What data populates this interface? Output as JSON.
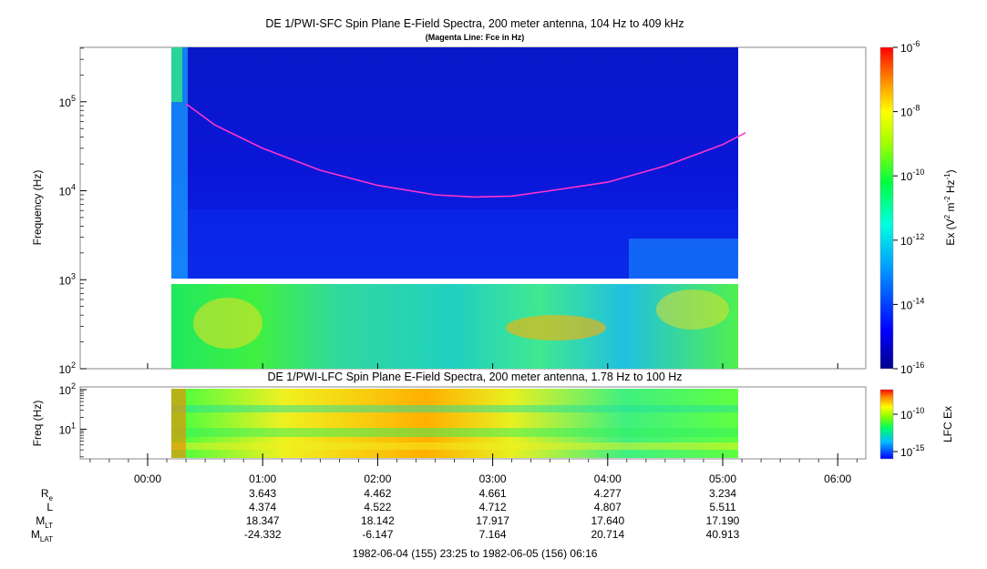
{
  "panel_top": {
    "title": "DE 1/PWI-SFC  Spin Plane E-Field Spectra, 200 meter antenna, 104 Hz to 409 kHz",
    "subtitle": "(Magenta Line: Fce in Hz)",
    "ylabel": "Frequency (Hz)",
    "yticks": [
      {
        "base": "10",
        "exp": "5",
        "value": 100000
      },
      {
        "base": "10",
        "exp": "4",
        "value": 10000
      },
      {
        "base": "10",
        "exp": "3",
        "value": 1000
      },
      {
        "base": "10",
        "exp": "2",
        "value": 100
      }
    ],
    "colorbar": {
      "label_main": "Ex (V",
      "label_sup1": "2",
      "label_mid": " m",
      "label_sup2": "-2",
      "label_mid2": " Hz",
      "label_sup3": "-1",
      "label_end": ")",
      "ticks": [
        {
          "base": "10",
          "exp": "-6"
        },
        {
          "base": "10",
          "exp": "-8"
        },
        {
          "base": "10",
          "exp": "-10"
        },
        {
          "base": "10",
          "exp": "-12"
        },
        {
          "base": "10",
          "exp": "-14"
        },
        {
          "base": "10",
          "exp": "-16"
        }
      ]
    }
  },
  "panel_bottom": {
    "title": "DE 1/PWI-LFC  Spin Plane E-Field Spectra, 200 meter antenna, 1.78 Hz to 100 Hz",
    "ylabel": "Freq (Hz)",
    "yticks": [
      {
        "base": "10",
        "exp": "2"
      },
      {
        "base": "10",
        "exp": "1"
      }
    ],
    "colorbar": {
      "label": "LFC Ex",
      "ticks": [
        {
          "base": "10",
          "exp": "-10"
        },
        {
          "base": "10",
          "exp": "-15"
        }
      ]
    }
  },
  "xaxis": {
    "ticks": [
      "00:00",
      "01:00",
      "02:00",
      "03:00",
      "04:00",
      "05:00",
      "06:00"
    ],
    "date_range": "1982-06-04 (155) 23:25 to 1982-06-05 (156) 06:16"
  },
  "ephemeris": {
    "rows": [
      {
        "label": "R",
        "sub": "e",
        "values": [
          "3.643",
          "4.462",
          "4.661",
          "4.277",
          "3.234"
        ]
      },
      {
        "label": "L",
        "sub": "",
        "values": [
          "4.374",
          "4.522",
          "4.712",
          "4.807",
          "5.511"
        ]
      },
      {
        "label": "M",
        "sub": "LT",
        "values": [
          "18.347",
          "18.142",
          "17.917",
          "17.640",
          "17.190"
        ]
      },
      {
        "label": "M",
        "sub": "LAT",
        "values": [
          "-24.332",
          "-6.147",
          "7.164",
          "20.714",
          "40.913"
        ]
      }
    ]
  },
  "colors": {
    "fce_line": "#ff33cc",
    "background_spectrum": "#0a14c8"
  },
  "chart_data": {
    "type": "heatmap",
    "x_time_ticks": [
      "00:00",
      "01:00",
      "02:00",
      "03:00",
      "04:00",
      "05:00",
      "06:00"
    ],
    "data_time_range": [
      "23:25",
      "06:16"
    ],
    "top_panel": {
      "ylim_hz": [
        100,
        409000
      ],
      "y_scale": "log",
      "color_scale": "log",
      "clim": [
        "1e-16",
        "1e-6"
      ],
      "fce_line": {
        "name": "Fce in Hz",
        "points": [
          {
            "t": "00:20",
            "hz": 95000
          },
          {
            "t": "00:35",
            "hz": 55000
          },
          {
            "t": "01:00",
            "hz": 30000
          },
          {
            "t": "01:30",
            "hz": 17000
          },
          {
            "t": "02:00",
            "hz": 11500
          },
          {
            "t": "02:30",
            "hz": 9000
          },
          {
            "t": "02:50",
            "hz": 8500
          },
          {
            "t": "03:10",
            "hz": 8700
          },
          {
            "t": "03:30",
            "hz": 10000
          },
          {
            "t": "04:00",
            "hz": 12500
          },
          {
            "t": "04:30",
            "hz": 19000
          },
          {
            "t": "05:00",
            "hz": 33000
          },
          {
            "t": "05:12",
            "hz": 45000
          }
        ]
      }
    },
    "bottom_panel": {
      "ylim_hz": [
        1.78,
        100
      ],
      "y_scale": "log",
      "color_scale": "log"
    }
  }
}
